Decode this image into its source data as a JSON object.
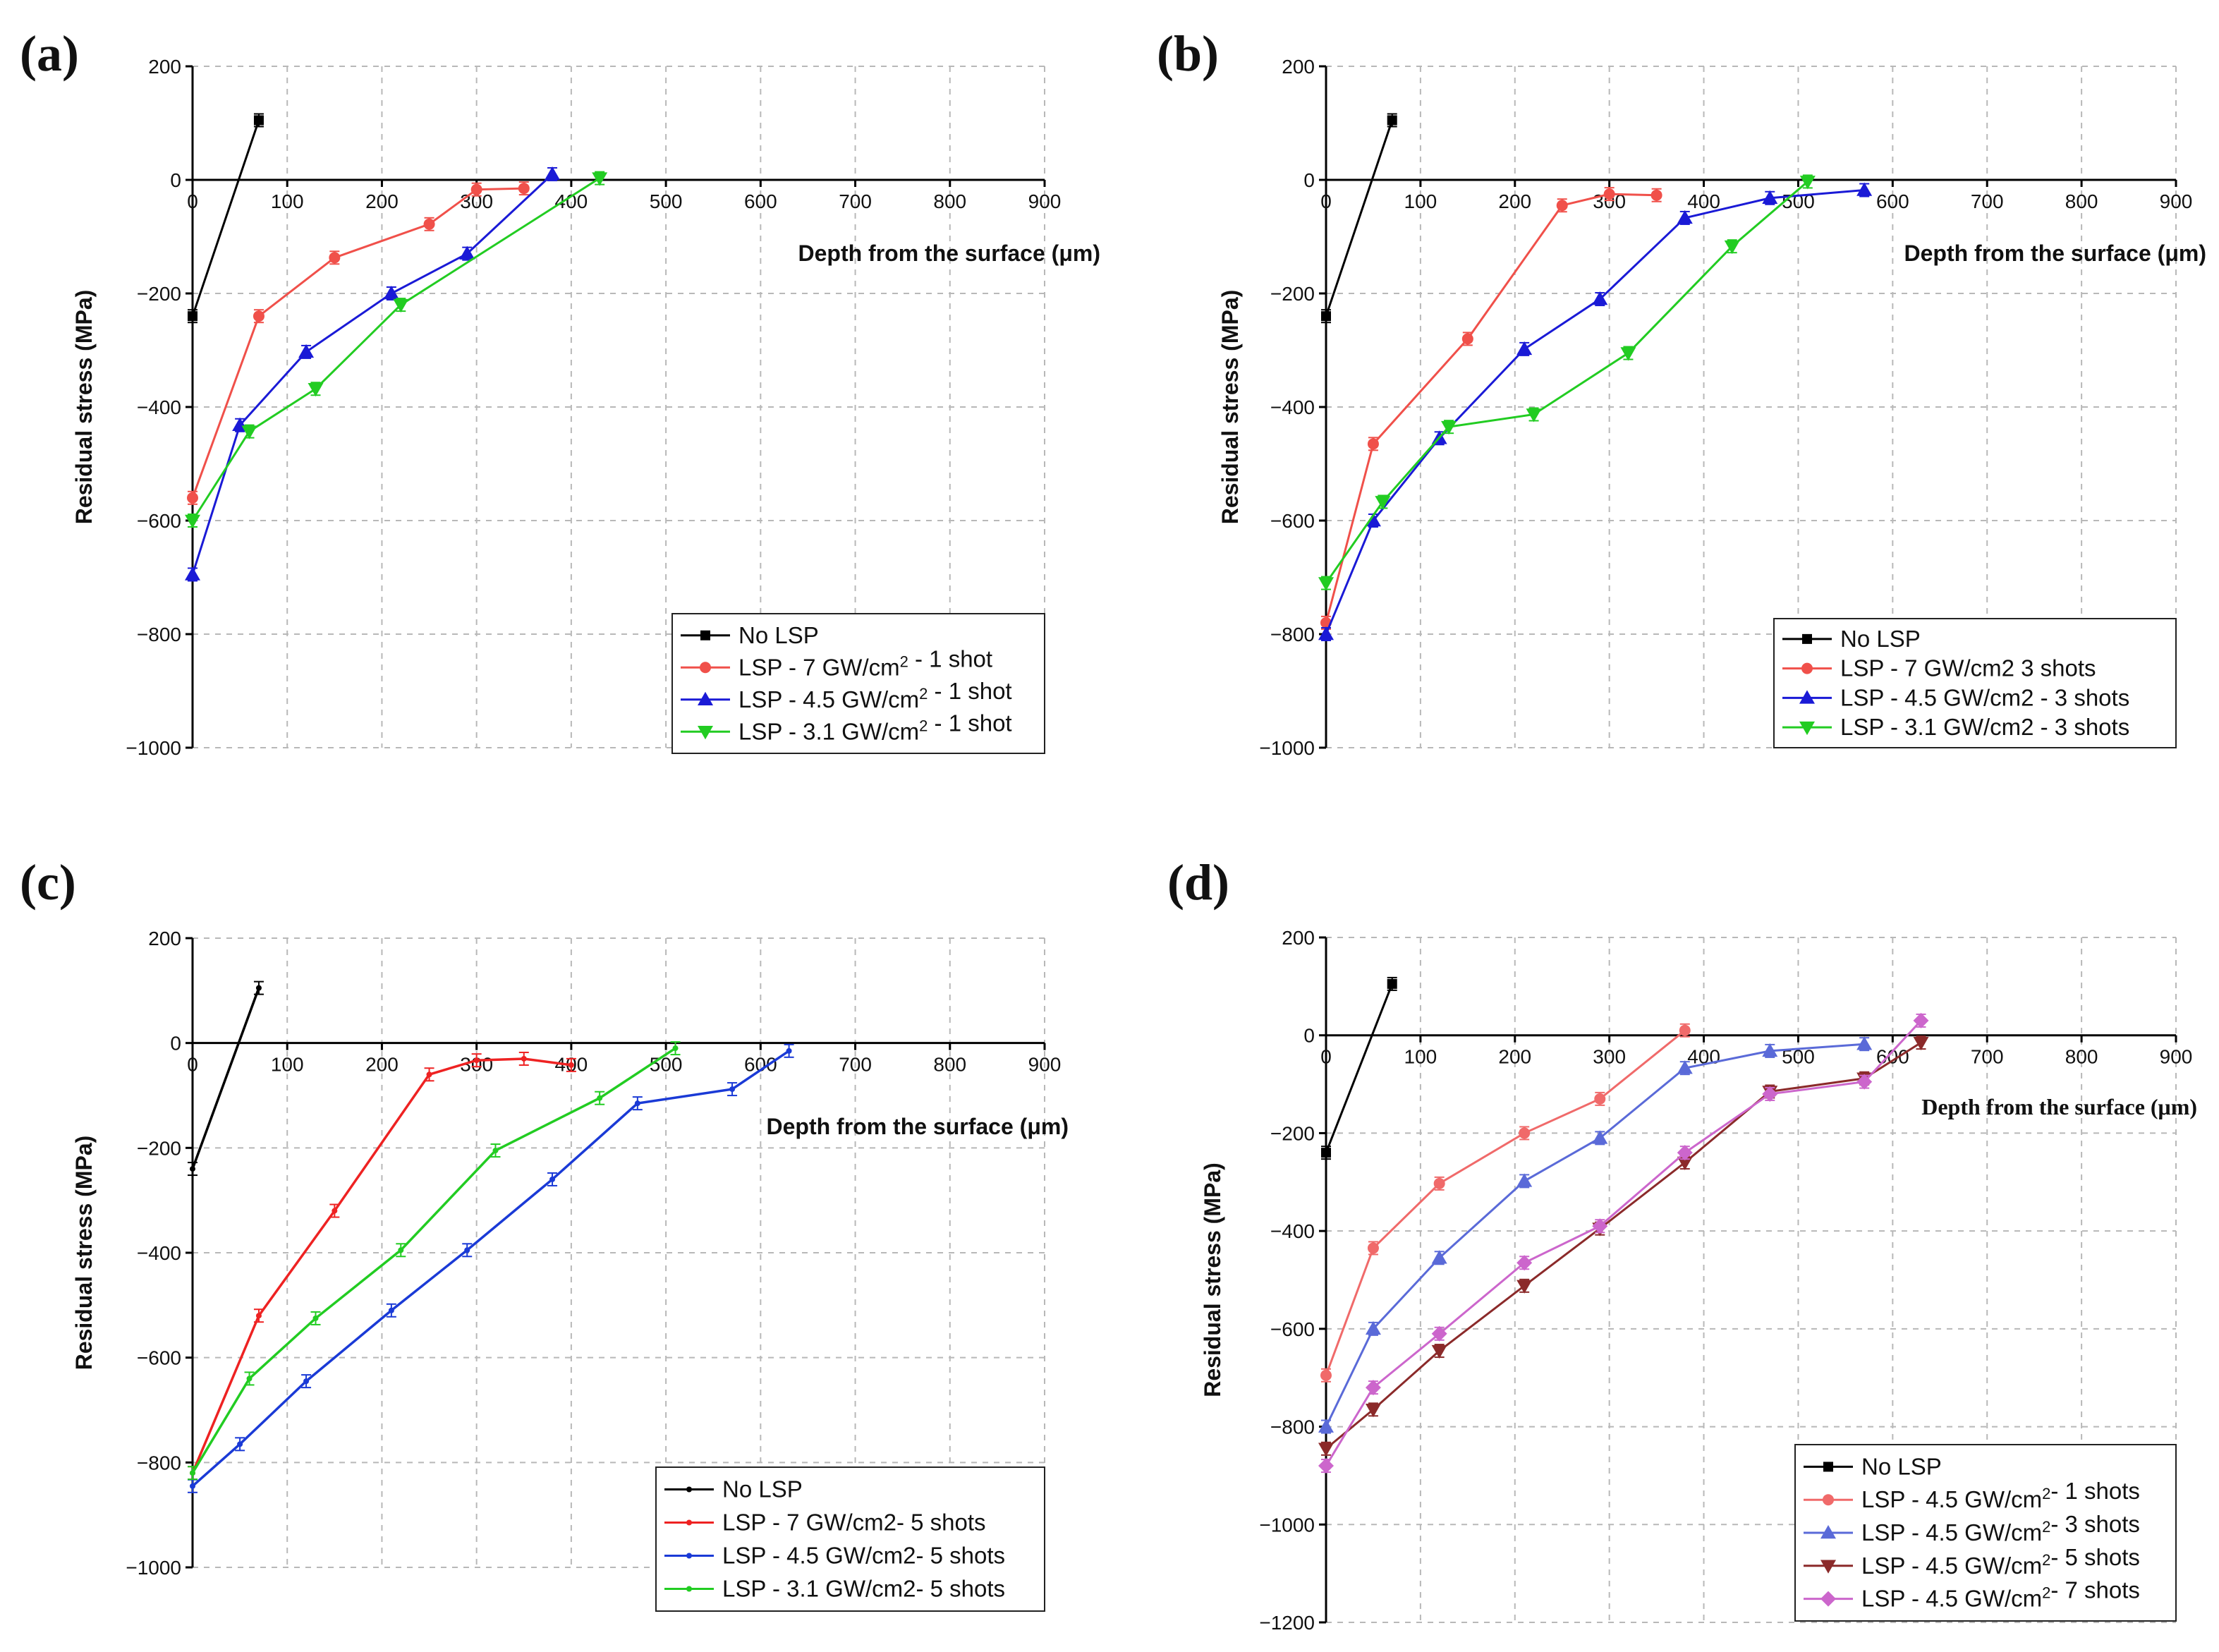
{
  "charts": [
    {
      "panel_label": "(a)",
      "chart_data": {
        "type": "line",
        "xlabel": "Depth from the surface (μm)",
        "ylabel": "Residual stress (MPa)",
        "xlim": [
          0,
          900
        ],
        "ylim": [
          -1000,
          200
        ],
        "xticks": [
          0,
          100,
          200,
          300,
          400,
          500,
          600,
          700,
          800,
          900
        ],
        "yticks": [
          200,
          0,
          -200,
          -400,
          -600,
          -800,
          -1000
        ],
        "legend_position": "bottom-right",
        "series": [
          {
            "name": "No LSP",
            "color": "#000000",
            "marker": "square",
            "x": [
              0,
              70
            ],
            "y": [
              -240,
              105
            ]
          },
          {
            "name": "LSP -   7 GW/cm² - 1 shot",
            "color": "#f0504a",
            "marker": "circle",
            "x": [
              0,
              70,
              150,
              250,
              300,
              350
            ],
            "y": [
              -560,
              -240,
              -137,
              -78,
              -17,
              -15
            ]
          },
          {
            "name": "LSP - 4.5 GW/cm² - 1 shot",
            "color": "#1a1ad6",
            "marker": "triangle-up",
            "x": [
              0,
              50,
              120,
              210,
              290,
              380
            ],
            "y": [
              -695,
              -432,
              -303,
              -200,
              -130,
              10
            ]
          },
          {
            "name": "LSP - 3.1 GW/cm² - 1 shot",
            "color": "#22cc22",
            "marker": "triangle-down",
            "x": [
              0,
              60,
              130,
              220,
              430
            ],
            "y": [
              -600,
              -443,
              -368,
              -220,
              3
            ]
          }
        ]
      }
    },
    {
      "panel_label": "(b)",
      "chart_data": {
        "type": "line",
        "xlabel": "Depth from the surface (μm)",
        "ylabel": "Residual stress (MPa)",
        "xlim": [
          0,
          900
        ],
        "ylim": [
          -1000,
          200
        ],
        "xticks": [
          0,
          100,
          200,
          300,
          400,
          500,
          600,
          700,
          800,
          900
        ],
        "yticks": [
          200,
          0,
          -200,
          -400,
          -600,
          -800,
          -1000
        ],
        "legend_position": "bottom-right",
        "series": [
          {
            "name": "No LSP",
            "color": "#000000",
            "marker": "square",
            "x": [
              0,
              70
            ],
            "y": [
              -240,
              105
            ]
          },
          {
            "name": "LSP -   7 GW/cm2   3 shots",
            "color": "#f0504a",
            "marker": "circle",
            "x": [
              0,
              50,
              150,
              250,
              300,
              350
            ],
            "y": [
              -780,
              -465,
              -280,
              -45,
              -25,
              -27
            ]
          },
          {
            "name": "LSP - 4.5 GW/cm2 - 3 shots",
            "color": "#1a1ad6",
            "marker": "triangle-up",
            "x": [
              0,
              50,
              120,
              210,
              290,
              380,
              470,
              570
            ],
            "y": [
              -800,
              -600,
              -455,
              -298,
              -210,
              -67,
              -32,
              -18
            ]
          },
          {
            "name": "LSP - 3.1 GW/cm2 - 3 shots",
            "color": "#22cc22",
            "marker": "triangle-down",
            "x": [
              0,
              60,
              130,
              220,
              320,
              430,
              510
            ],
            "y": [
              -710,
              -567,
              -435,
              -413,
              -305,
              -117,
              -3
            ]
          }
        ]
      }
    },
    {
      "panel_label": "(c)",
      "chart_data": {
        "type": "line",
        "xlabel": "Depth from the surface (μm)",
        "ylabel": "Residual stress (MPa)",
        "xlim": [
          0,
          900
        ],
        "ylim": [
          -1000,
          200
        ],
        "xticks": [
          0,
          100,
          200,
          300,
          400,
          500,
          600,
          700,
          800,
          900
        ],
        "yticks": [
          200,
          0,
          -200,
          -400,
          -600,
          -800,
          -1000
        ],
        "legend_position": "bottom-right",
        "series": [
          {
            "name": "No LSP",
            "color": "#000000",
            "marker": "dot",
            "x": [
              0,
              70
            ],
            "y": [
              -240,
              105
            ]
          },
          {
            "name": "LSP -   7 GW/cm2-  5 shots",
            "color": "#ee2222",
            "marker": "dot",
            "x": [
              0,
              70,
              150,
              250,
              300,
              350,
              400
            ],
            "y": [
              -820,
              -520,
              -320,
              -60,
              -33,
              -30,
              -42
            ]
          },
          {
            "name": "LSP - 4.5 GW/cm2- 5 shots",
            "color": "#1a3ad6",
            "marker": "dot",
            "x": [
              0,
              50,
              120,
              210,
              290,
              380,
              470,
              570,
              630
            ],
            "y": [
              -845,
              -765,
              -645,
              -510,
              -395,
              -260,
              -115,
              -88,
              -15
            ]
          },
          {
            "name": "LSP - 3.1 GW/cm2- 5 shots",
            "color": "#22cc22",
            "marker": "dot",
            "x": [
              0,
              60,
              130,
              220,
              320,
              430,
              510
            ],
            "y": [
              -820,
              -640,
              -525,
              -395,
              -205,
              -105,
              -10
            ]
          }
        ]
      }
    },
    {
      "panel_label": "(d)",
      "chart_data": {
        "type": "line",
        "xlabel": "Depth from the surface (μm)",
        "ylabel": "Residual stress (MPa)",
        "xlim": [
          0,
          900
        ],
        "ylim": [
          -1200,
          200
        ],
        "xticks": [
          0,
          100,
          200,
          300,
          400,
          500,
          600,
          700,
          800,
          900
        ],
        "yticks": [
          200,
          0,
          -200,
          -400,
          -600,
          -800,
          -1000,
          -1200
        ],
        "legend_position": "bottom-right",
        "series": [
          {
            "name": "No LSP",
            "color": "#000000",
            "marker": "square",
            "x": [
              0,
              70
            ],
            "y": [
              -240,
              105
            ]
          },
          {
            "name": "LSP - 4.5 GW/cm²- 1 shots",
            "color": "#f06a6a",
            "marker": "circle",
            "x": [
              0,
              50,
              120,
              210,
              290,
              380
            ],
            "y": [
              -695,
              -435,
              -303,
              -200,
              -130,
              10
            ]
          },
          {
            "name": "LSP - 4.5 GW/cm²- 3 shots",
            "color": "#5a6ad8",
            "marker": "triangle-up",
            "x": [
              0,
              50,
              120,
              210,
              290,
              380,
              470,
              570
            ],
            "y": [
              -800,
              -600,
              -455,
              -298,
              -210,
              -67,
              -32,
              -18
            ]
          },
          {
            "name": "LSP - 4.5 GW/cm²- 5 shots",
            "color": "#8b2a2a",
            "marker": "triangle-down",
            "x": [
              0,
              50,
              120,
              210,
              290,
              380,
              470,
              570,
              630
            ],
            "y": [
              -845,
              -765,
              -645,
              -512,
              -395,
              -260,
              -115,
              -88,
              -15
            ]
          },
          {
            "name": "LSP - 4.5 GW/cm²- 7 shots",
            "color": "#cc66cc",
            "marker": "diamond",
            "x": [
              0,
              50,
              120,
              210,
              290,
              380,
              470,
              570,
              630
            ],
            "y": [
              -880,
              -720,
              -610,
              -465,
              -390,
              -240,
              -120,
              -95,
              30
            ]
          }
        ]
      }
    }
  ]
}
